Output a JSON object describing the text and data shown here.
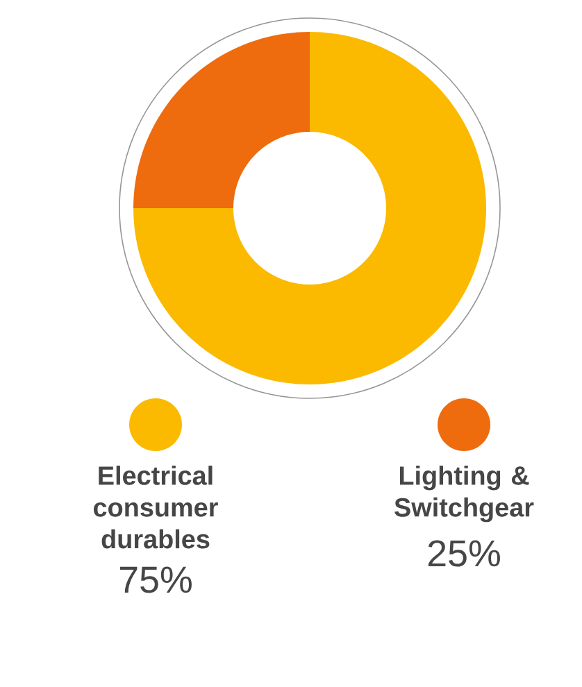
{
  "chart_data": {
    "type": "donut",
    "categories": [
      "Electrical consumer durables",
      "Lighting & Switchgear"
    ],
    "values": [
      75,
      25
    ],
    "colors": [
      "#fbba00",
      "#ee6b0e"
    ],
    "value_labels": [
      "75%",
      "25%"
    ],
    "legend": "bottom"
  }
}
